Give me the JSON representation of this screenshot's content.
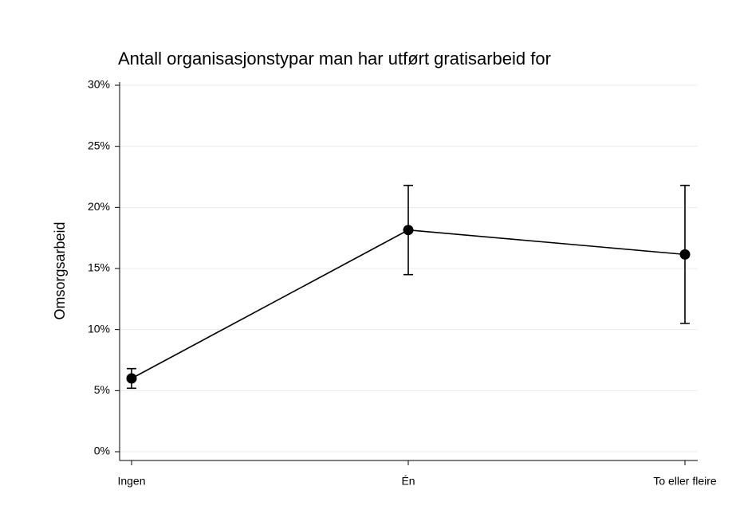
{
  "chart_data": {
    "type": "line",
    "title": "Antall organisasjonstypar man har utført gratisarbeid for",
    "ylabel": "Omsorgsarbeid",
    "categories": [
      "Ingen",
      "Én",
      "To eller fleire"
    ],
    "series": [
      {
        "color": "#000000",
        "values": [
          6.0,
          18.15,
          16.15
        ],
        "errors": [
          0.8,
          3.65,
          5.65
        ]
      }
    ],
    "ylim": [
      0,
      30
    ],
    "yticks": [
      {
        "value": 0,
        "label": "0%"
      },
      {
        "value": 5,
        "label": "5%"
      },
      {
        "value": 10,
        "label": "10%"
      },
      {
        "value": 15,
        "label": "15%"
      },
      {
        "value": 20,
        "label": "20%"
      },
      {
        "value": 25,
        "label": "25%"
      },
      {
        "value": 30,
        "label": "30%"
      }
    ],
    "grid": true
  }
}
